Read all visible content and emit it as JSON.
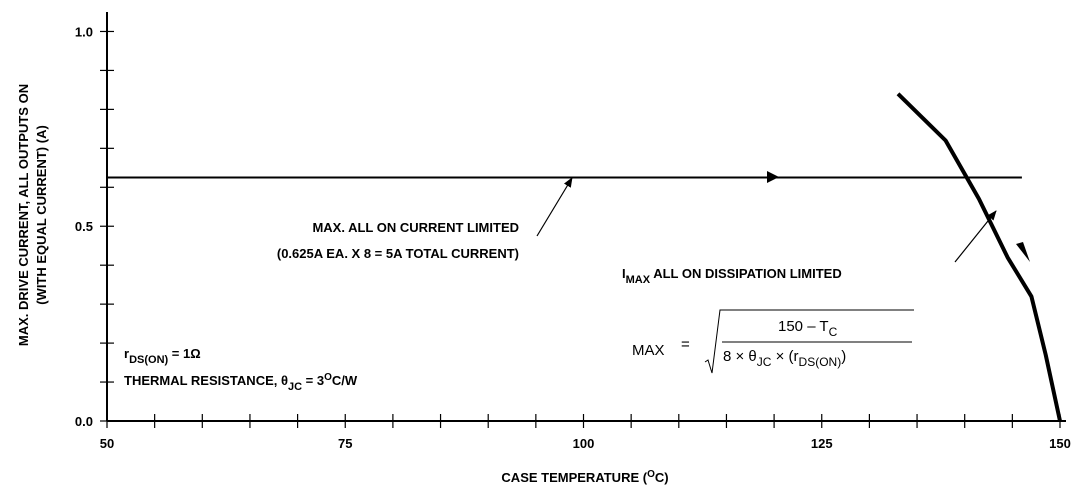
{
  "chart_data": {
    "type": "line",
    "title": "",
    "xlabel": {
      "text": "CASE TEMPERATURE (",
      "sup": "O",
      "tail": "C)"
    },
    "ylabel": {
      "line1": "MAX. DRIVE CURRENT, ALL OUTPUTS ON",
      "line2": "(WITH EQUAL CURRENT) (A)"
    },
    "xlim": [
      50,
      150
    ],
    "ylim": [
      0,
      1.05
    ],
    "x_ticks": [
      50,
      75,
      100,
      125,
      150
    ],
    "x_tick_labels": [
      "50",
      "75",
      "100",
      "125",
      "150"
    ],
    "x_minor_step": 5,
    "y_ticks": [
      0,
      0.5,
      1.0
    ],
    "y_tick_labels": [
      "0.0",
      "0.5",
      "1.0"
    ],
    "y_minor_step": 0.1,
    "grid": false,
    "series": [
      {
        "x": [
          50,
          146
        ],
        "y": [
          0.625,
          0.625
        ]
      },
      {
        "x": [
          133,
          138,
          141.5,
          144.5,
          147,
          148.5,
          150
        ],
        "y": [
          0.84,
          0.72,
          0.57,
          0.42,
          0.32,
          0.17,
          0
        ]
      }
    ],
    "annotations": {
      "current_limit": {
        "line1": "MAX. ALL ON CURRENT LIMITED",
        "line2": "(0.625A EA. X 8 = 5A TOTAL CURRENT)"
      },
      "dissipation_limit": {
        "i_main": "I",
        "i_sub": "MAX",
        "text": " ALL ON DISSIPATION LIMITED"
      },
      "formula": {
        "lhs": "MAX",
        "eq": "=",
        "numerator": "150 – T",
        "numerator_sub": "C",
        "denominator": "8 × θ",
        "den_sub1": "JC",
        "den_mid": " × (r",
        "den_sub2": "DS(ON)",
        "den_tail": ")"
      },
      "rds": {
        "main": "r",
        "sub": "DS(ON)",
        "tail": " = 1Ω"
      },
      "thermal": {
        "text": "THERMAL RESISTANCE, θ",
        "sub": "JC",
        "mid": " = 3",
        "sup": "O",
        "tail": "C/W"
      }
    }
  }
}
